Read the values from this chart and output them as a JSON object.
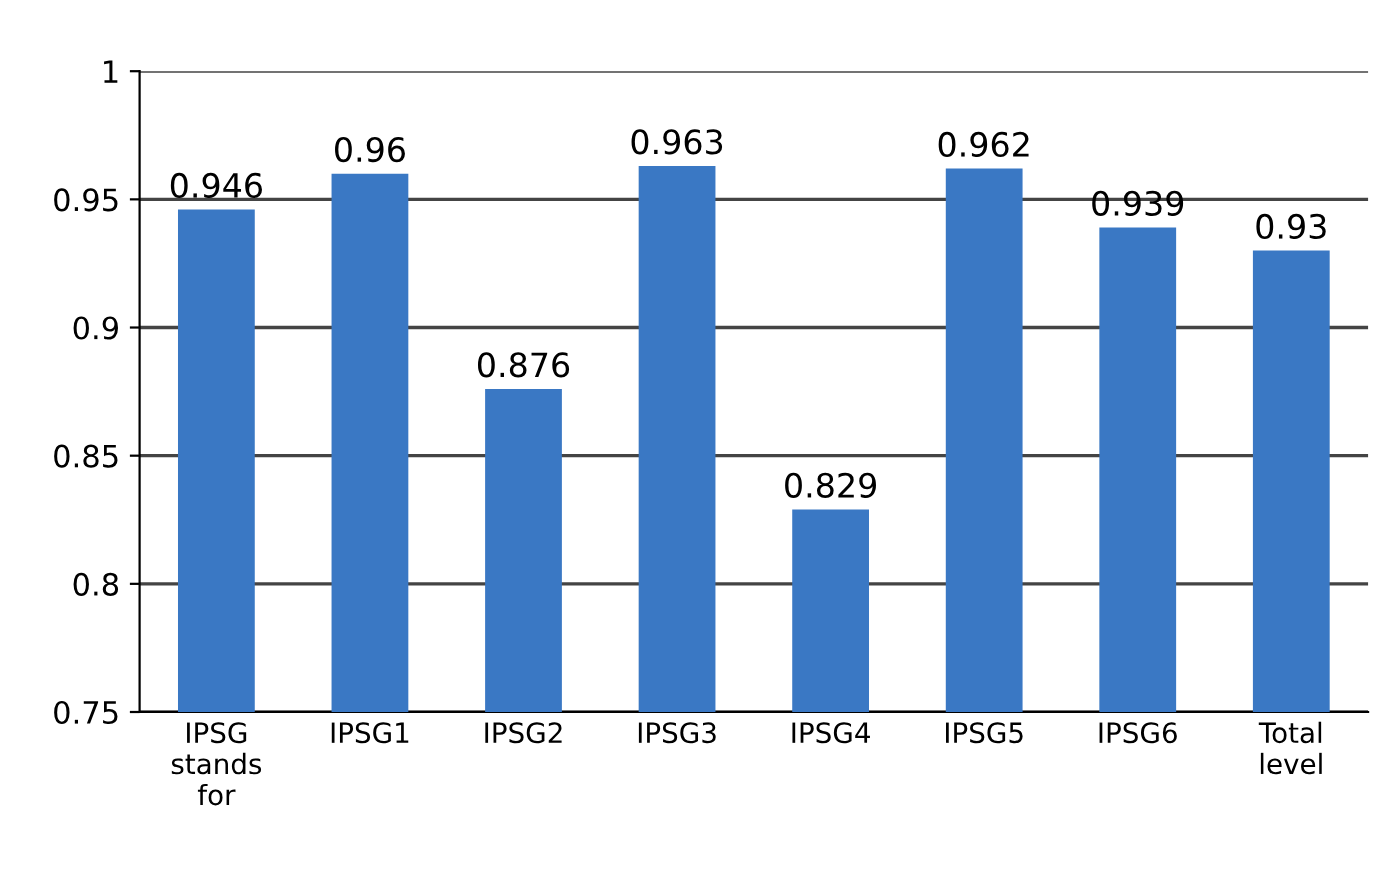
{
  "chart_data": {
    "type": "bar",
    "categories": [
      "IPSG stands for",
      "IPSG1",
      "IPSG2",
      "IPSG3",
      "IPSG4",
      "IPSG5",
      "IPSG6",
      "Total level"
    ],
    "values": [
      0.946,
      0.96,
      0.876,
      0.963,
      0.829,
      0.962,
      0.939,
      0.93
    ],
    "color": "#3a78c4",
    "ylim": [
      0.75,
      1
    ],
    "yticks": [
      0.75,
      0.8,
      0.85,
      0.9,
      0.95,
      1
    ],
    "grid": "y",
    "data_labels": true
  }
}
